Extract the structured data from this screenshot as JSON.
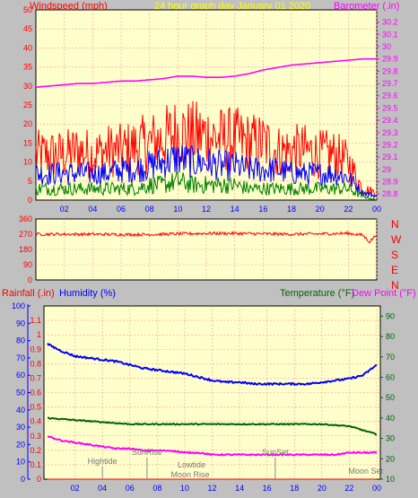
{
  "header": {
    "left_title": "Windspeed (mph)",
    "center_title": "24 hour graph day   January 01 2020",
    "right_title": "Barometer (.in)"
  },
  "mid_labels": {
    "rainfall": "Rainfall (.in)",
    "humidity": "Humidity (%)",
    "temperature": "Temperature (°F)",
    "dewpoint": "Dew Point (°F)"
  },
  "compass": [
    "N",
    "W",
    "S",
    "E",
    "N"
  ],
  "colors": {
    "background": "#c0c0c0",
    "plot_bg": "#ffffcc",
    "wind_title": "#ff0000",
    "date_title": "#ffff00",
    "baro": "#ff00ff",
    "rain": "#ff0000",
    "humidity": "#0000ff",
    "temperature": "#006600",
    "dewpoint": "#ff00ff",
    "wind_gust": "#ff0000",
    "wind_avg": "#0000ff",
    "wind_min": "#008000",
    "axis_blue": "#0000ff",
    "axis_green": "#006600",
    "axis_red": "#ff0000"
  },
  "chart_data": [
    {
      "type": "line",
      "name": "wind-barometer",
      "title": "24 hour graph day   January 01 2020",
      "xlabel": "",
      "ylabel": "Windspeed (mph)",
      "y2label": "Barometer (.in)",
      "x_ticks": [
        "02",
        "04",
        "06",
        "08",
        "10",
        "12",
        "14",
        "16",
        "18",
        "20",
        "22",
        "00"
      ],
      "ylim": [
        0,
        50
      ],
      "y_ticks": [
        "0",
        "5",
        "10",
        "15",
        "20",
        "25",
        "30",
        "35",
        "40",
        "45",
        "50"
      ],
      "y2lim": [
        28.75,
        30.3
      ],
      "y2_ticks": [
        "28.8",
        "28.9",
        "29",
        "29.1",
        "29.2",
        "29.3",
        "29.4",
        "29.5",
        "29.6",
        "29.7",
        "29.8",
        "29.9",
        "30",
        "30.1",
        "30.2"
      ],
      "series": [
        {
          "key": "barometer",
          "axis": "y2",
          "x": [
            0,
            1,
            2,
            3,
            4,
            5,
            6,
            7,
            8,
            9,
            10,
            11,
            12,
            13,
            14,
            15,
            16,
            17,
            18,
            19,
            20,
            21,
            22,
            23,
            24
          ],
          "values": [
            29.67,
            29.68,
            29.69,
            29.7,
            29.7,
            29.71,
            29.72,
            29.72,
            29.73,
            29.74,
            29.76,
            29.76,
            29.75,
            29.75,
            29.76,
            29.78,
            29.81,
            29.83,
            29.85,
            29.86,
            29.87,
            29.88,
            29.89,
            29.9,
            29.9
          ]
        },
        {
          "key": "gust",
          "axis": "y",
          "x": [
            0,
            1,
            2,
            3,
            4,
            5,
            6,
            7,
            8,
            9,
            10,
            11,
            12,
            13,
            14,
            15,
            16,
            17,
            18,
            19,
            20,
            21,
            22,
            23,
            24
          ],
          "values": [
            12,
            12,
            12,
            13,
            12,
            13,
            13,
            14,
            15,
            16,
            18,
            17,
            17,
            16,
            16,
            15,
            15,
            13,
            13,
            13,
            12,
            12,
            10,
            3,
            2
          ]
        },
        {
          "key": "average",
          "axis": "y",
          "x": [
            0,
            1,
            2,
            3,
            4,
            5,
            6,
            7,
            8,
            9,
            10,
            11,
            12,
            13,
            14,
            15,
            16,
            17,
            18,
            19,
            20,
            21,
            22,
            23,
            24
          ],
          "values": [
            7,
            7,
            7,
            7,
            7,
            7,
            8,
            8,
            9,
            10,
            11,
            10,
            10,
            9,
            9,
            8,
            8,
            8,
            7,
            7,
            7,
            7,
            6,
            2,
            1
          ]
        },
        {
          "key": "minimum",
          "axis": "y",
          "x": [
            0,
            1,
            2,
            3,
            4,
            5,
            6,
            7,
            8,
            9,
            10,
            11,
            12,
            13,
            14,
            15,
            16,
            17,
            18,
            19,
            20,
            21,
            22,
            23,
            24
          ],
          "values": [
            3,
            3,
            3,
            3,
            3,
            3,
            3,
            3,
            4,
            4,
            5,
            4,
            4,
            4,
            4,
            3,
            3,
            3,
            3,
            3,
            3,
            3,
            3,
            1,
            0
          ]
        }
      ]
    },
    {
      "type": "line",
      "name": "wind-direction",
      "title": "",
      "ylim": [
        0,
        360
      ],
      "y_ticks": [
        "0",
        "90",
        "180",
        "270",
        "360"
      ],
      "series": [
        {
          "key": "direction",
          "x": [
            0,
            2,
            4,
            6,
            8,
            10,
            12,
            14,
            16,
            18,
            20,
            22,
            23,
            23.5,
            24
          ],
          "values": [
            270,
            270,
            270,
            268,
            268,
            272,
            275,
            275,
            272,
            270,
            272,
            275,
            265,
            225,
            270
          ]
        }
      ]
    },
    {
      "type": "line",
      "name": "humidity-temperature",
      "title": "",
      "x_ticks": [
        "02",
        "04",
        "06",
        "08",
        "10",
        "12",
        "14",
        "16",
        "18",
        "20",
        "22",
        "00"
      ],
      "rain_lim": [
        0,
        1.2
      ],
      "rain_ticks": [
        "0",
        "0.1",
        "0.2",
        "0.3",
        "0.4",
        "0.5",
        "0.6",
        "0.7",
        "0.8",
        "0.9",
        "1",
        "1.1"
      ],
      "hum_lim": [
        0,
        100
      ],
      "hum_ticks": [
        "0",
        "10",
        "20",
        "30",
        "40",
        "50",
        "60",
        "70",
        "80",
        "90",
        "100"
      ],
      "temp_lim": [
        10,
        95
      ],
      "temp_ticks": [
        "10",
        "20",
        "30",
        "40",
        "50",
        "60",
        "70",
        "80",
        "90"
      ],
      "series": [
        {
          "key": "humidity",
          "axis": "humidity",
          "x": [
            0,
            1,
            2,
            3,
            4,
            5,
            6,
            7,
            8,
            9,
            10,
            11,
            12,
            13,
            14,
            15,
            16,
            17,
            18,
            19,
            20,
            21,
            22,
            23,
            24
          ],
          "values": [
            78,
            74,
            71,
            70,
            69,
            68,
            66,
            64,
            63,
            62,
            61,
            59,
            57,
            56,
            56,
            55,
            55,
            55,
            55,
            55,
            56,
            57,
            58,
            60,
            66
          ]
        },
        {
          "key": "temperature",
          "axis": "temperature",
          "x": [
            0,
            2,
            4,
            6,
            8,
            10,
            12,
            14,
            16,
            18,
            20,
            22,
            23,
            24
          ],
          "values": [
            40,
            39,
            38,
            37,
            37,
            37,
            37,
            37,
            37,
            37,
            37,
            36,
            34,
            32
          ]
        },
        {
          "key": "dewpoint",
          "axis": "temperature",
          "x": [
            0,
            1,
            2,
            3,
            4,
            5,
            6,
            7,
            8,
            9,
            10,
            11,
            12,
            13,
            14,
            15,
            16,
            17,
            18,
            19,
            20,
            21,
            22,
            23,
            24
          ],
          "values": [
            31,
            29,
            28,
            27,
            26,
            25,
            25,
            24,
            24,
            24,
            23,
            23,
            22,
            22,
            22,
            22,
            22,
            22,
            22,
            22,
            22,
            22,
            23,
            23,
            23
          ]
        },
        {
          "key": "rainfall",
          "axis": "rain",
          "x": [
            0,
            24
          ],
          "values": [
            0,
            0
          ]
        }
      ],
      "events": [
        {
          "label": "Hightide",
          "time": 4.0
        },
        {
          "label": "SunRise",
          "time": 7.25
        },
        {
          "label": "Lowtide",
          "time": 10.5
        },
        {
          "label": "Moon Rise",
          "time": 10.4
        },
        {
          "label": "SunSet",
          "time": 16.6
        },
        {
          "label": "Moon Set",
          "time": 23.2
        }
      ]
    }
  ]
}
